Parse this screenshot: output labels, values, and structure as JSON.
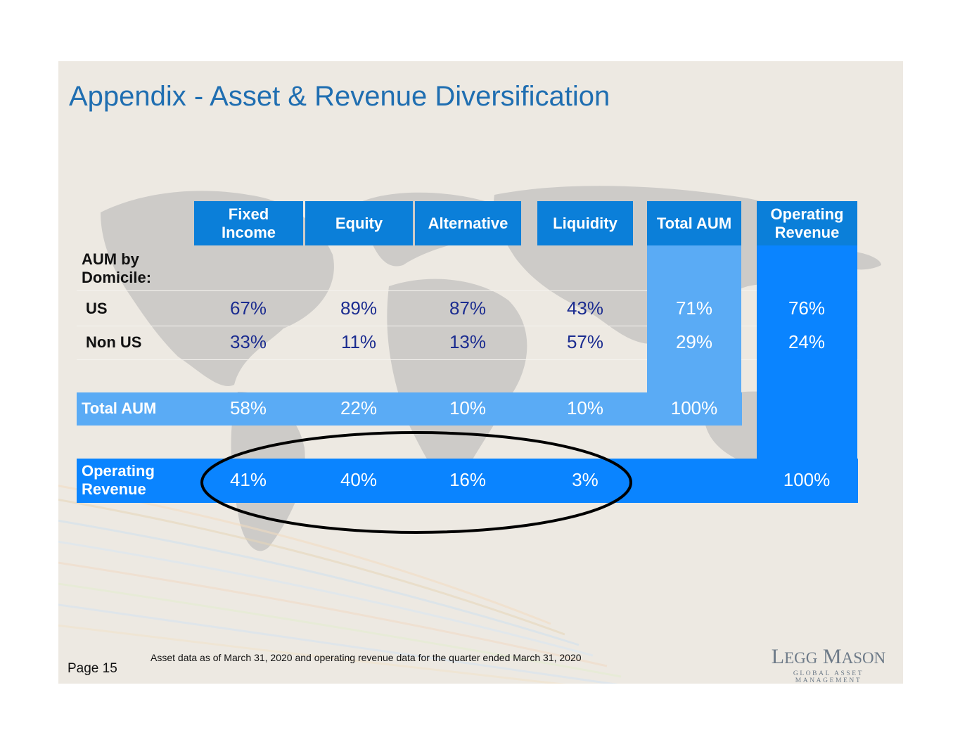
{
  "title": "Appendix - Asset & Revenue Diversification",
  "columns": [
    "Fixed Income",
    "Equity",
    "Alternative",
    "Liquidity",
    "Total AUM",
    "Operating Revenue"
  ],
  "header_lines": {
    "fixed_income": [
      "Fixed",
      "Income"
    ],
    "operating_revenue": [
      "Operating",
      "Revenue"
    ]
  },
  "section_label": [
    "AUM by",
    "Domicile:"
  ],
  "rows": {
    "us": {
      "label": "US",
      "values": [
        "67%",
        "89%",
        "87%",
        "43%",
        "71%",
        "76%"
      ]
    },
    "non_us": {
      "label": "Non US",
      "values": [
        "33%",
        "11%",
        "13%",
        "57%",
        "29%",
        "24%"
      ]
    },
    "total_aum": {
      "label": "Total AUM",
      "values": [
        "58%",
        "22%",
        "10%",
        "10%",
        "100%"
      ]
    },
    "operating_revenue": {
      "label_lines": [
        "Operating",
        "Revenue"
      ],
      "values": [
        "41%",
        "40%",
        "16%",
        "3%",
        "100%"
      ]
    }
  },
  "footnote": "Asset data as of March 31, 2020 and operating revenue data for the quarter ended March 31, 2020",
  "page_label": "Page 15",
  "logo": {
    "name_parts": [
      "L",
      "EGG",
      "M",
      "ASON"
    ],
    "tagline": "GLOBAL ASSET MANAGEMENT"
  },
  "colors": {
    "header_blue": "#0b7fd9",
    "total_aum_column": "#5aabf5",
    "operating_revenue_blue": "#0a84ff",
    "value_text": "#1b2c90",
    "title_blue": "#1f6eb1"
  }
}
